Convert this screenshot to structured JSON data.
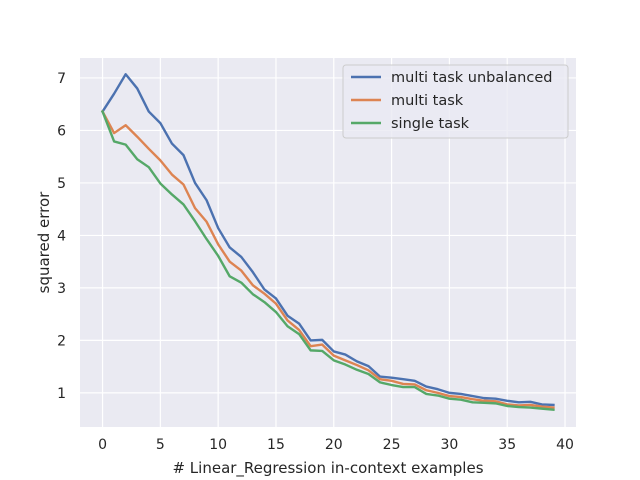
{
  "chart_data": {
    "type": "line",
    "title": "",
    "xlabel": "# Linear_Regression in-context examples",
    "ylabel": "squared error",
    "xlim": [
      -1.95,
      40.95
    ],
    "ylim": [
      0.35,
      7.38
    ],
    "xticks": [
      0,
      5,
      10,
      15,
      20,
      25,
      30,
      35,
      40
    ],
    "yticks": [
      1,
      2,
      3,
      4,
      5,
      6,
      7
    ],
    "grid": true,
    "background": "#eaeaf2",
    "legend": "top-right",
    "x": [
      0,
      1,
      2,
      3,
      4,
      5,
      6,
      7,
      8,
      9,
      10,
      11,
      12,
      13,
      14,
      15,
      16,
      17,
      18,
      19,
      20,
      21,
      22,
      23,
      24,
      25,
      26,
      27,
      28,
      29,
      30,
      31,
      32,
      33,
      34,
      35,
      36,
      37,
      38,
      39
    ],
    "series": [
      {
        "name": "multi task unbalanced",
        "color": "#4c72b0",
        "values": [
          6.36,
          6.7,
          7.07,
          6.8,
          6.36,
          6.14,
          5.75,
          5.53,
          5.0,
          4.67,
          4.14,
          3.77,
          3.59,
          3.3,
          2.97,
          2.8,
          2.47,
          2.32,
          2.0,
          2.01,
          1.79,
          1.73,
          1.6,
          1.51,
          1.31,
          1.29,
          1.26,
          1.23,
          1.12,
          1.07,
          1.0,
          0.98,
          0.94,
          0.9,
          0.89,
          0.85,
          0.82,
          0.83,
          0.78,
          0.77
        ]
      },
      {
        "name": "multi task",
        "color": "#dd8452",
        "values": [
          6.36,
          5.95,
          6.1,
          5.88,
          5.65,
          5.43,
          5.16,
          4.97,
          4.52,
          4.26,
          3.83,
          3.5,
          3.33,
          3.05,
          2.89,
          2.7,
          2.38,
          2.2,
          1.89,
          1.92,
          1.71,
          1.62,
          1.53,
          1.43,
          1.26,
          1.23,
          1.17,
          1.16,
          1.05,
          1.0,
          0.94,
          0.92,
          0.88,
          0.85,
          0.84,
          0.78,
          0.76,
          0.77,
          0.74,
          0.72
        ]
      },
      {
        "name": "single task",
        "color": "#55a868",
        "values": [
          6.36,
          5.79,
          5.73,
          5.45,
          5.3,
          4.99,
          4.78,
          4.59,
          4.27,
          3.93,
          3.61,
          3.22,
          3.1,
          2.88,
          2.73,
          2.54,
          2.27,
          2.12,
          1.81,
          1.8,
          1.62,
          1.54,
          1.44,
          1.36,
          1.2,
          1.15,
          1.11,
          1.11,
          0.98,
          0.95,
          0.89,
          0.87,
          0.82,
          0.81,
          0.8,
          0.75,
          0.73,
          0.72,
          0.7,
          0.68
        ]
      }
    ]
  }
}
